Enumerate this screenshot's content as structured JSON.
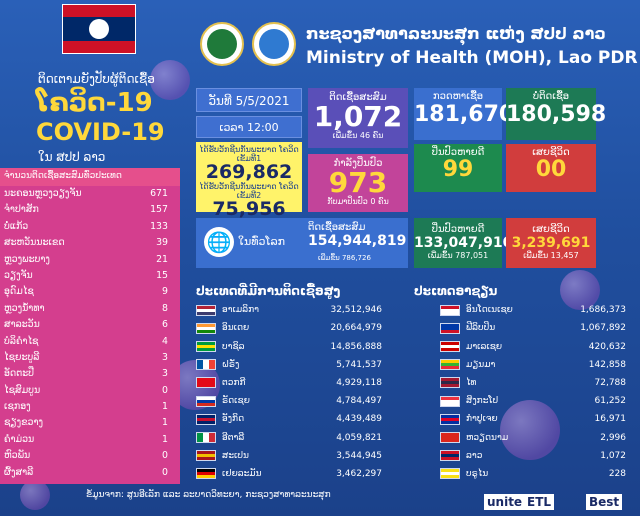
{
  "header": {
    "ministry_lao": "ກະຊວງສາທາລະນະສຸກ ແຫ່ງ ສປປ ລາວ",
    "ministry_en": "Ministry of Health (MOH), Lao PDR"
  },
  "left_title": {
    "line1": "ຕິດເຕາມຍັງປັບຜູ້ຕິດເຊື້ອ",
    "line2": "ໂຄວິດ-19",
    "line3": "COVID-19",
    "line4": "ໃນ ສປປ ລາວ"
  },
  "provinces": {
    "header": "ຈຳນວນຕິດເຊື້ອສະສົມທົ່ວປະເທດ",
    "rows": [
      {
        "name": "ນະຄອນຫຼວງວຽງຈັນ",
        "value": "671"
      },
      {
        "name": "ຈຳປາສັກ",
        "value": "157"
      },
      {
        "name": "ບໍ່ແກ້ວ",
        "value": "133"
      },
      {
        "name": "ສະຫວັນນະເຂດ",
        "value": "39"
      },
      {
        "name": "ຫຼວງພະບາງ",
        "value": "21"
      },
      {
        "name": "ວຽງຈັນ",
        "value": "15"
      },
      {
        "name": "ອຸດົມໄຊ",
        "value": "9"
      },
      {
        "name": "ຫຼວງນ້ຳທາ",
        "value": "8"
      },
      {
        "name": "ສາລະວັນ",
        "value": "6"
      },
      {
        "name": "ບໍລິຄຳໄຊ",
        "value": "4"
      },
      {
        "name": "ໄຊຍະບູລີ",
        "value": "3"
      },
      {
        "name": "ອັດຕະປື",
        "value": "3"
      },
      {
        "name": "ໄຊສົມບູນ",
        "value": "0"
      },
      {
        "name": "ເຊກອງ",
        "value": "1"
      },
      {
        "name": "ຊຽງຂວາງ",
        "value": "1"
      },
      {
        "name": "ຄຳມ່ວນ",
        "value": "1"
      },
      {
        "name": "ຫົວພັນ",
        "value": "0"
      },
      {
        "name": "ຜົ້ງສາລີ",
        "value": "0"
      }
    ]
  },
  "stats": {
    "date": "ວັນທີ 5/5/2021",
    "time": "ເວລາ 12:00",
    "tests_label1": "ໄດ້ຮັບວັກຊີນກັນພະຍາດ ໂຄວິດເຂັມທີ1",
    "tests_value1": "269,862",
    "tests_label2": "ໄດ້ຮັບວັກຊີນກັນພະຍາດ ໂຄວິດເຂັມທີ2",
    "tests_value2": "75,956",
    "cumulative_label": "ຕິດເຊື້ອສະສົມ",
    "cumulative_value": "1,072",
    "cumulative_sub": "ເພີ່ມຂຶ້ນ 46 ຄົນ",
    "treating_label": "ກຳລັງປິ່ນປົວ",
    "treating_value": "973",
    "treating_sub": "ກັບມາປິ່ນປົວ 0 ຄົນ",
    "screened_label": "ກວດຫາເຊື້ອ",
    "screened_value": "181,670",
    "negative_label": "ບໍ່ຕິດເຊື້ອ",
    "negative_value": "180,598",
    "recovered_label": "ປິ່ນປົວຫາຍດີ",
    "recovered_value": "99",
    "deaths_label": "ເສຍຊີວິດ",
    "deaths_value": "00"
  },
  "world": {
    "label": "ໃນທົ່ວໂລກ",
    "cases_label": "ຕິດເຊື້ອສະສົມ",
    "cases_value": "154,944,819",
    "cases_sub": "ເພີ່ມຂຶ້ນ 786,726",
    "recovered_label": "ປິ່ນປົວຫາຍດີ",
    "recovered_value": "133,047,910",
    "recovered_sub": "ເພີ່ມຂຶ້ນ 787,051",
    "deaths_label": "ເສຍຊີວິດ",
    "deaths_value": "3,239,691",
    "deaths_sub": "ເພີ່ມຂຶ້ນ 13,457"
  },
  "top_countries": {
    "title": "ປະເທດທີ່ມີການຕິດເຊື້ອສູງ",
    "rows": [
      {
        "name": "ອາເມລິກາ",
        "value": "32,512,946",
        "flag": "us"
      },
      {
        "name": "ອິນເດຍ",
        "value": "20,664,979",
        "flag": "in"
      },
      {
        "name": "ບາຊິລ",
        "value": "14,856,888",
        "flag": "br"
      },
      {
        "name": "ຝຣັ່ງ",
        "value": "5,741,537",
        "flag": "fr"
      },
      {
        "name": "ຕວກກີ",
        "value": "4,929,118",
        "flag": "tr"
      },
      {
        "name": "ຣັດເຊຍ",
        "value": "4,784,497",
        "flag": "ru"
      },
      {
        "name": "ອັງກິດ",
        "value": "4,439,489",
        "flag": "gb"
      },
      {
        "name": "ອີຕາລີ",
        "value": "4,059,821",
        "flag": "it"
      },
      {
        "name": "ສະເປນ",
        "value": "3,544,945",
        "flag": "es"
      },
      {
        "name": "ເຢຍລະມັນ",
        "value": "3,462,297",
        "flag": "de"
      }
    ]
  },
  "asean": {
    "title": "ປະເທດອາຊຽນ",
    "rows": [
      {
        "name": "ອິນໂດເນເຊຍ",
        "value": "1,686,373",
        "flag": "id"
      },
      {
        "name": "ຟີລິບປິນ",
        "value": "1,067,892",
        "flag": "ph"
      },
      {
        "name": "ມາເລເຊຍ",
        "value": "420,632",
        "flag": "my"
      },
      {
        "name": "ມຽນມາ",
        "value": "142,858",
        "flag": "mm"
      },
      {
        "name": "ໄທ",
        "value": "72,788",
        "flag": "th"
      },
      {
        "name": "ສິງກະໂປ",
        "value": "61,252",
        "flag": "sg"
      },
      {
        "name": "ກຳປູເຈຍ",
        "value": "16,971",
        "flag": "kh"
      },
      {
        "name": "ຫວຽດນາມ",
        "value": "2,996",
        "flag": "vn"
      },
      {
        "name": "ລາວ",
        "value": "1,072",
        "flag": "la"
      },
      {
        "name": "ບຣູໄນ",
        "value": "228",
        "flag": "bn"
      }
    ]
  },
  "footer": {
    "source": "ຂໍ້ມູນຈາກ: ສູນອີເລັກ ແລະ ລະບາດວິທະຍາ, ກະຊວງສາທາລະນະສຸກ"
  },
  "sponsors": {
    "s1": "unite",
    "s2": "ETL",
    "s3": "Best"
  },
  "colors": {
    "background": "#1f4f9e",
    "yellow": "#ffd83b",
    "pink_panel": "#d43e8e",
    "green": "#1d7a55",
    "red": "#d13d3d"
  }
}
